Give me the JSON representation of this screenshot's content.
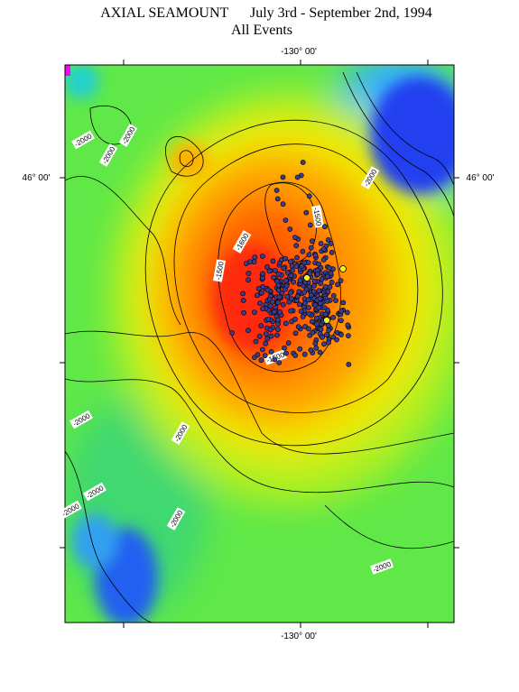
{
  "header": {
    "title": "AXIAL SEAMOUNT      July 3rd - September 2nd, 1994",
    "subtitle": "All Events"
  },
  "axes": {
    "top_longitude": "-130° 00'",
    "bottom_longitude": "-130° 00'",
    "left_latitude": "46° 00'",
    "right_latitude": "46° 00'"
  },
  "contour_labels": [
    "-2000",
    "-2000",
    "-2000",
    "-2000",
    "-1500",
    "-1600",
    "-1500",
    "-1500",
    "-2000",
    "-2000",
    "-2000",
    "-2000",
    "-2000",
    "-2000"
  ]
}
